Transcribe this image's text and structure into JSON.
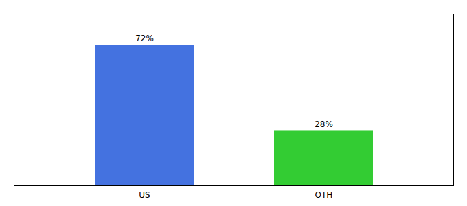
{
  "chart_data": {
    "type": "bar",
    "categories": [
      "US",
      "OTH"
    ],
    "values": [
      72,
      28
    ],
    "value_labels": [
      "72%",
      "28%"
    ],
    "data_labels": true,
    "colors": [
      "#4472e0",
      "#33cc33"
    ],
    "ylim": [
      0,
      88
    ],
    "tick_labels": "x",
    "grid": false
  }
}
